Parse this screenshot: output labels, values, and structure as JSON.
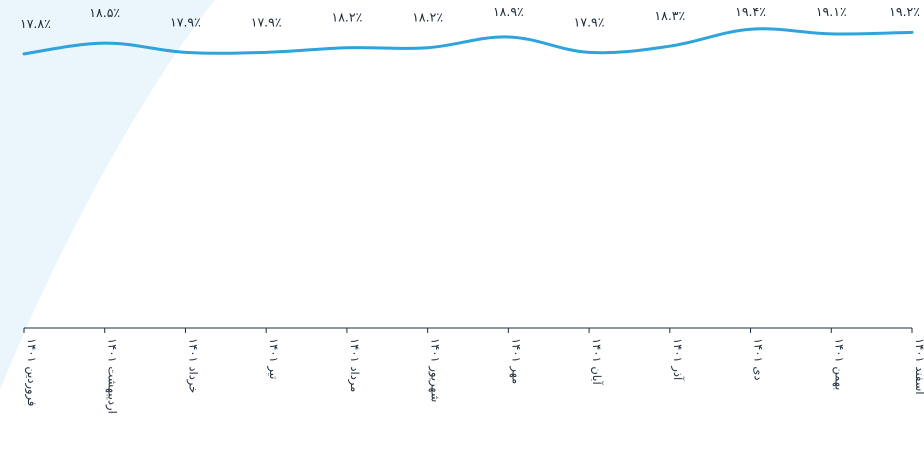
{
  "chart_data": {
    "type": "line",
    "categories": [
      "فروردین ۱۴۰۱",
      "اردیبهشت ۱۴۰۱",
      "خرداد ۱۴۰۱",
      "تیر ۱۴۰۱",
      "مرداد ۱۴۰۱",
      "شهریور ۱۴۰۱",
      "مهر ۱۴۰۱",
      "آبان ۱۴۰۱",
      "آذر ۱۴۰۱",
      "دی ۱۴۰۱",
      "بهمن ۱۴۰۱",
      "اسفند ۱۴۰۱"
    ],
    "values": [
      17.8,
      18.5,
      17.9,
      17.9,
      18.2,
      18.2,
      18.9,
      17.9,
      18.3,
      19.4,
      19.1,
      19.2
    ],
    "value_labels": [
      "۱۷.۸٪",
      "۱۸.۵٪",
      "۱۷.۹٪",
      "۱۷.۹٪",
      "۱۸.۲٪",
      "۱۸.۲٪",
      "۱۸.۹٪",
      "۱۷.۹٪",
      "۱۸.۳٪",
      "۱۹.۴٪",
      "۱۹.۱٪",
      "۱۹.۲٪"
    ],
    "title": "",
    "xlabel": "",
    "ylabel": "",
    "ylim": [
      0,
      20
    ],
    "grid": false,
    "legend": "none",
    "colors": {
      "line": "#2ea3dc",
      "background_shape": "#eaf5fc",
      "axis": "#1d2b3a"
    }
  }
}
